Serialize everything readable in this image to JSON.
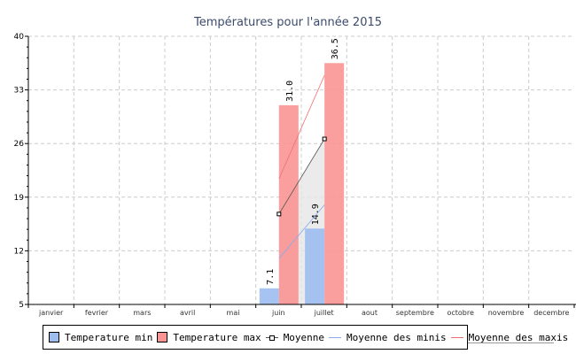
{
  "chart_data": {
    "type": "bar",
    "title": "Températures pour l'année 2015",
    "categories": [
      "janvier",
      "fevrier",
      "mars",
      "avril",
      "mai",
      "juin",
      "juillet",
      "aout",
      "septembre",
      "octobre",
      "novembre",
      "decembre"
    ],
    "ylim": [
      5,
      40
    ],
    "yticks": [
      "5",
      "12",
      "19",
      "26",
      "33",
      "40"
    ],
    "grid": true,
    "legend_position": "bottom",
    "series": [
      {
        "name": "Temperature min",
        "type": "bar",
        "color": "#9dbdef",
        "values": [
          null,
          null,
          null,
          null,
          null,
          7.1,
          14.9,
          null,
          null,
          null,
          null,
          null
        ],
        "labels": [
          "",
          "",
          "",
          "",
          "",
          "7.1",
          "14.9",
          "",
          "",
          "",
          "",
          ""
        ]
      },
      {
        "name": "Temperature max",
        "type": "bar",
        "color": "#f99494",
        "values": [
          null,
          null,
          null,
          null,
          null,
          31.0,
          36.5,
          null,
          null,
          null,
          null,
          null
        ],
        "labels": [
          "",
          "",
          "",
          "",
          "",
          "31.0",
          "36.5",
          "",
          "",
          "",
          "",
          ""
        ]
      },
      {
        "name": "Moyenne",
        "type": "line",
        "color": "#555555",
        "values": [
          null,
          null,
          null,
          null,
          null,
          16.8,
          26.6,
          null,
          null,
          null,
          null,
          null
        ]
      },
      {
        "name": "Moyenne des minis",
        "type": "line",
        "color": "#8aaaf0",
        "values": [
          null,
          null,
          null,
          null,
          null,
          11.0,
          18.0,
          null,
          null,
          null,
          null,
          null
        ]
      },
      {
        "name": "Moyenne des maxis",
        "type": "line",
        "color": "#f07070",
        "values": [
          null,
          null,
          null,
          null,
          null,
          21.4,
          34.9,
          null,
          null,
          null,
          null,
          null
        ]
      }
    ]
  }
}
